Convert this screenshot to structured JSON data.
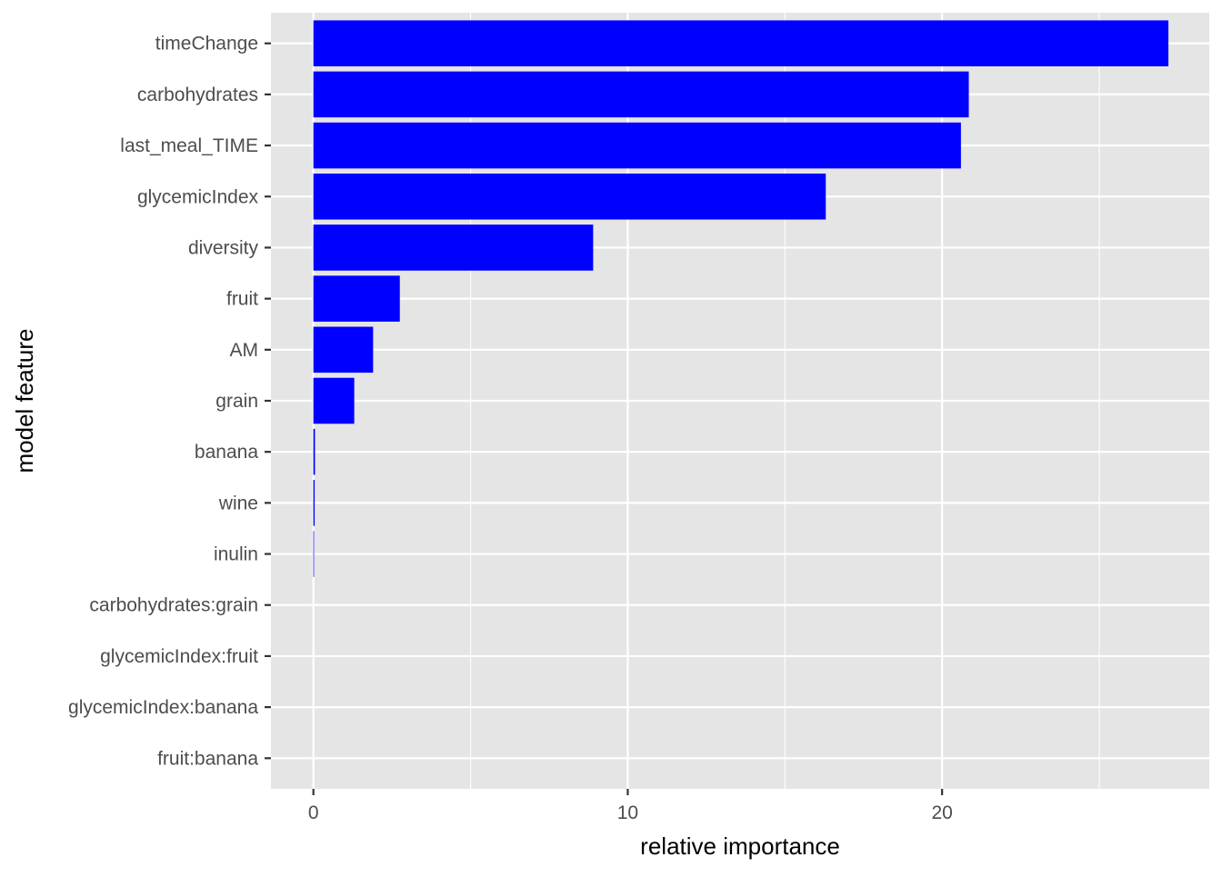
{
  "chart_data": {
    "type": "bar",
    "orientation": "horizontal",
    "title": "",
    "xlabel": "relative importance",
    "ylabel": "model feature",
    "categories": [
      "timeChange",
      "carbohydrates",
      "last_meal_TIME",
      "glycemicIndex",
      "diversity",
      "fruit",
      "AM",
      "grain",
      "banana",
      "wine",
      "inulin",
      "carbohydrates:grain",
      "glycemicIndex:fruit",
      "glycemicIndex:banana",
      "fruit:banana"
    ],
    "values": [
      27.2,
      20.85,
      20.6,
      16.3,
      8.9,
      2.75,
      1.9,
      1.3,
      0.05,
      0.04,
      0.02,
      0,
      0,
      0,
      0
    ],
    "xlim": [
      -1.35,
      28.5
    ],
    "x_ticks": [
      0,
      10,
      20
    ],
    "x_tick_labels": [
      "0",
      "10",
      "20"
    ],
    "grid": true,
    "legend": "none",
    "colors": {
      "bar": "#0000FF",
      "panel_background": "#E5E5E5",
      "grid_line": "#FFFFFF",
      "tick_label": "#4D4D4D",
      "axis_title": "#000000"
    }
  }
}
